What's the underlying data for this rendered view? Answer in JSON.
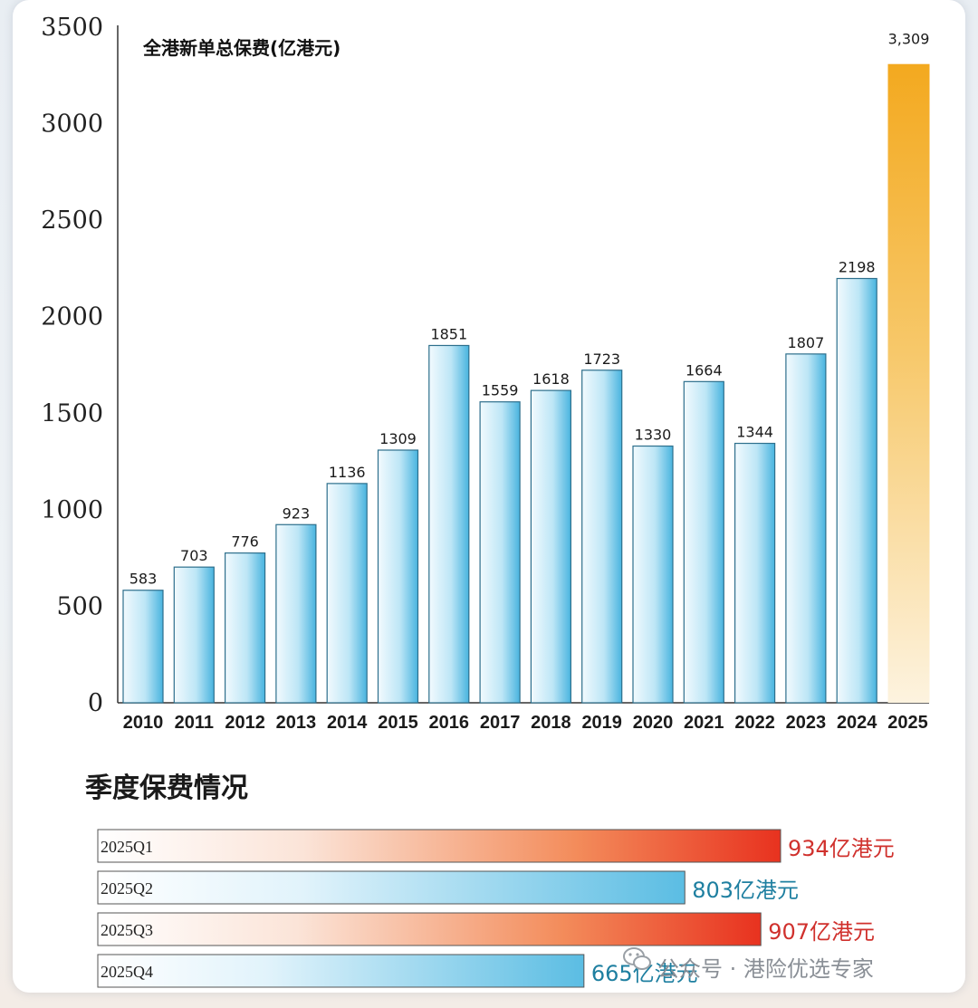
{
  "chart_data": [
    {
      "type": "bar",
      "title": "全港新单总保费(亿港元)",
      "categories": [
        "2010",
        "2011",
        "2012",
        "2013",
        "2014",
        "2015",
        "2016",
        "2017",
        "2018",
        "2019",
        "2020",
        "2021",
        "2022",
        "2023",
        "2024",
        "2025"
      ],
      "values": [
        583,
        703,
        776,
        923,
        1136,
        1309,
        1851,
        1559,
        1618,
        1723,
        1330,
        1664,
        1344,
        1807,
        2198,
        3309
      ],
      "value_labels": [
        "583",
        "703",
        "776",
        "923",
        "1136",
        "1309",
        "1851",
        "1559",
        "1618",
        "1723",
        "1330",
        "1664",
        "1344",
        "1807",
        "2198",
        "3,309"
      ],
      "ylim": [
        0,
        3500
      ],
      "yticks": [
        0,
        500,
        1000,
        1500,
        2000,
        2500,
        3000,
        3500
      ],
      "grid": false,
      "highlight_category": "2025",
      "colors": {
        "bar": "#5bbde3",
        "bar_light": "#eaf7fd",
        "highlight": "#f5a623",
        "highlight_label": "#d0312d",
        "highlight_year": "#2a84a0"
      }
    },
    {
      "type": "bar",
      "orientation": "horizontal",
      "title": "季度保费情况",
      "categories": [
        "2025Q1",
        "2025Q2",
        "2025Q3",
        "2025Q4"
      ],
      "values": [
        934,
        803,
        907,
        665
      ],
      "value_labels": [
        "934亿港元",
        "803亿港元",
        "907亿港元",
        "665亿港元"
      ],
      "colors": [
        "#e8321f",
        "#5bbde3",
        "#e8321f",
        "#5bbde3"
      ],
      "label_colors": [
        "#d0312d",
        "#1e7fa0",
        "#d0312d",
        "#1e7fa0"
      ]
    }
  ],
  "watermark": {
    "text": "公众号 · 港险优选专家",
    "icon": "wechat-icon"
  }
}
